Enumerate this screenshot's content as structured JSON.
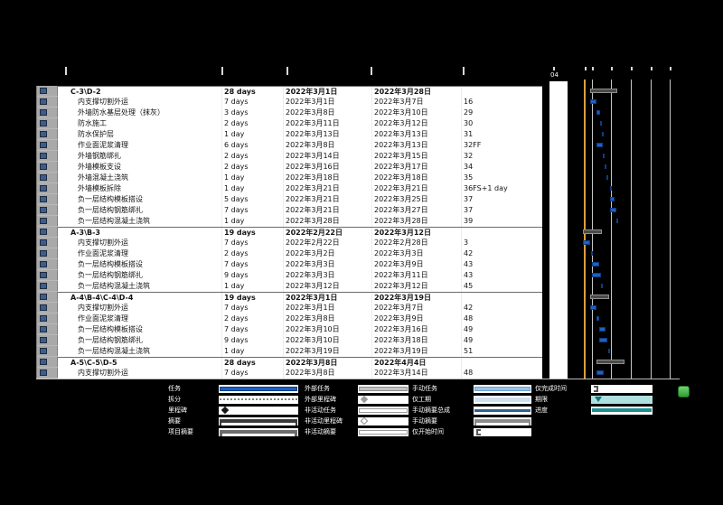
{
  "gantt": {
    "timescale_label": "04",
    "status_line_color": "#dd9f3d",
    "task_bar_color": "#2060c0",
    "summary_bar_color": "#4a4a48"
  },
  "table": {
    "rows": [
      {
        "name": "C-3\\D-2",
        "summary": true,
        "duration": "28 days",
        "start": "2022年3月1日",
        "finish": "2022年3月28日",
        "pred": ""
      },
      {
        "name": "内支撑切割外运",
        "summary": false,
        "duration": "7 days",
        "start": "2022年3月1日",
        "finish": "2022年3月7日",
        "pred": "16"
      },
      {
        "name": "外墙防水基层处理（抹灰）",
        "summary": false,
        "duration": "3 days",
        "start": "2022年3月8日",
        "finish": "2022年3月10日",
        "pred": "29"
      },
      {
        "name": "防水施工",
        "summary": false,
        "duration": "2 days",
        "start": "2022年3月11日",
        "finish": "2022年3月12日",
        "pred": "30"
      },
      {
        "name": "防水保护层",
        "summary": false,
        "duration": "1 day",
        "start": "2022年3月13日",
        "finish": "2022年3月13日",
        "pred": "31"
      },
      {
        "name": "作业面泥浆清理",
        "summary": false,
        "duration": "6 days",
        "start": "2022年3月8日",
        "finish": "2022年3月13日",
        "pred": "32FF"
      },
      {
        "name": "外墙钢筋绑扎",
        "summary": false,
        "duration": "2 days",
        "start": "2022年3月14日",
        "finish": "2022年3月15日",
        "pred": "32"
      },
      {
        "name": "外墙模板支设",
        "summary": false,
        "duration": "2 days",
        "start": "2022年3月16日",
        "finish": "2022年3月17日",
        "pred": "34"
      },
      {
        "name": "外墙混凝土浇筑",
        "summary": false,
        "duration": "1 day",
        "start": "2022年3月18日",
        "finish": "2022年3月18日",
        "pred": "35"
      },
      {
        "name": "外墙模板拆除",
        "summary": false,
        "duration": "1 day",
        "start": "2022年3月21日",
        "finish": "2022年3月21日",
        "pred": "36FS+1 day"
      },
      {
        "name": "负一层结构模板搭设",
        "summary": false,
        "duration": "5 days",
        "start": "2022年3月21日",
        "finish": "2022年3月25日",
        "pred": "37"
      },
      {
        "name": "负一层结构钢筋绑扎",
        "summary": false,
        "duration": "7 days",
        "start": "2022年3月21日",
        "finish": "2022年3月27日",
        "pred": "37"
      },
      {
        "name": "负一层结构混凝土浇筑",
        "summary": false,
        "duration": "1 day",
        "start": "2022年3月28日",
        "finish": "2022年3月28日",
        "pred": "39"
      },
      {
        "name": "A-3\\B-3",
        "summary": true,
        "duration": "19 days",
        "start": "2022年2月22日",
        "finish": "2022年3月12日",
        "pred": ""
      },
      {
        "name": "内支撑切割外运",
        "summary": false,
        "duration": "7 days",
        "start": "2022年2月22日",
        "finish": "2022年2月28日",
        "pred": "3"
      },
      {
        "name": "作业面泥浆清理",
        "summary": false,
        "duration": "2 days",
        "start": "2022年3月2日",
        "finish": "2022年3月3日",
        "pred": "42"
      },
      {
        "name": "负一层结构模板搭设",
        "summary": false,
        "duration": "7 days",
        "start": "2022年3月3日",
        "finish": "2022年3月9日",
        "pred": "43"
      },
      {
        "name": "负一层结构钢筋绑扎",
        "summary": false,
        "duration": "9 days",
        "start": "2022年3月3日",
        "finish": "2022年3月11日",
        "pred": "43"
      },
      {
        "name": "负一层结构混凝土浇筑",
        "summary": false,
        "duration": "1 day",
        "start": "2022年3月12日",
        "finish": "2022年3月12日",
        "pred": "45"
      },
      {
        "name": "A-4\\B-4\\C-4\\D-4",
        "summary": true,
        "duration": "19 days",
        "start": "2022年3月1日",
        "finish": "2022年3月19日",
        "pred": ""
      },
      {
        "name": "内支撑切割外运",
        "summary": false,
        "duration": "7 days",
        "start": "2022年3月1日",
        "finish": "2022年3月7日",
        "pred": "42"
      },
      {
        "name": "作业面泥浆清理",
        "summary": false,
        "duration": "2 days",
        "start": "2022年3月8日",
        "finish": "2022年3月9日",
        "pred": "48"
      },
      {
        "name": "负一层结构模板搭设",
        "summary": false,
        "duration": "7 days",
        "start": "2022年3月10日",
        "finish": "2022年3月16日",
        "pred": "49"
      },
      {
        "name": "负一层结构钢筋绑扎",
        "summary": false,
        "duration": "9 days",
        "start": "2022年3月10日",
        "finish": "2022年3月18日",
        "pred": "49"
      },
      {
        "name": "负一层结构混凝土浇筑",
        "summary": false,
        "duration": "1 day",
        "start": "2022年3月19日",
        "finish": "2022年3月19日",
        "pred": "51"
      },
      {
        "name": "A-5\\C-5\\D-5",
        "summary": true,
        "duration": "28 days",
        "start": "2022年3月8日",
        "finish": "2022年4月4日",
        "pred": ""
      },
      {
        "name": "内支撑切割外运",
        "summary": false,
        "duration": "7 days",
        "start": "2022年3月8日",
        "finish": "2022年3月14日",
        "pred": "48"
      }
    ]
  },
  "legend": {
    "groups": [
      {
        "items": [
          {
            "label": "任务",
            "glyph": "task"
          },
          {
            "label": "拆分",
            "glyph": "split"
          },
          {
            "label": "里程碑",
            "glyph": "milestone"
          },
          {
            "label": "摘要",
            "glyph": "summary"
          },
          {
            "label": "项目摘要",
            "glyph": "project-summary"
          }
        ]
      },
      {
        "items": [
          {
            "label": "外部任务",
            "glyph": "external-task"
          },
          {
            "label": "外部里程碑",
            "glyph": "external-milestone"
          },
          {
            "label": "非活动任务",
            "glyph": "inactive-task"
          },
          {
            "label": "非活动里程碑",
            "glyph": "inactive-milestone"
          },
          {
            "label": "非活动摘要",
            "glyph": "inactive-summary"
          }
        ]
      },
      {
        "items": [
          {
            "label": "手动任务",
            "glyph": "manual-task"
          },
          {
            "label": "仅工期",
            "glyph": "duration-only"
          },
          {
            "label": "手动摘要总成",
            "glyph": "manual-summary-rollup"
          },
          {
            "label": "手动摘要",
            "glyph": "manual-summary"
          },
          {
            "label": "仅开始时间",
            "glyph": "start-only"
          }
        ]
      },
      {
        "items": [
          {
            "label": "仅完成时间",
            "glyph": "finish-only"
          },
          {
            "label": "期限",
            "glyph": "deadline"
          },
          {
            "label": "进度",
            "glyph": "progress"
          }
        ]
      }
    ]
  }
}
